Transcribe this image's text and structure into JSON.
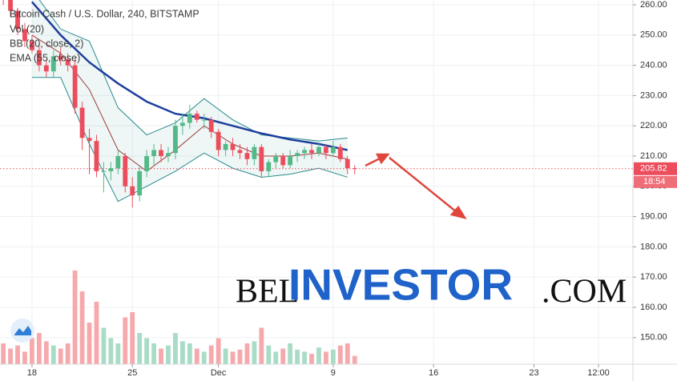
{
  "chart_data": {
    "type": "candlestick",
    "title": "Bitcoin Cash / U.S. Dollar, 240, BITSTAMP",
    "legend_items": [
      "Vol (20)",
      "BB (20, close, 2)",
      "EMA (55, close)"
    ],
    "x": [
      -2,
      -1.5,
      -1,
      -0.5,
      0,
      0.5,
      1,
      1.5,
      2,
      2.5,
      3,
      3.5,
      4,
      4.5,
      5,
      5.5,
      6,
      6.5,
      7,
      7.5,
      8,
      8.5,
      9,
      9.5,
      10,
      10.5,
      11,
      11.5,
      12,
      12.5,
      13,
      13.5,
      14,
      14.5,
      15,
      15.5,
      16,
      16.5,
      17,
      17.5,
      18,
      18.5,
      19,
      19.5,
      20,
      20.5,
      21,
      21.5,
      22,
      22.5
    ],
    "open": [
      265,
      262,
      258,
      252,
      248,
      245,
      240,
      238,
      243,
      242,
      240,
      226,
      216,
      215,
      205,
      205,
      206,
      210,
      200,
      197,
      205,
      210,
      212,
      210,
      211,
      220,
      221,
      224,
      222,
      222,
      218,
      212,
      214,
      212,
      211,
      209,
      213,
      205,
      208,
      210,
      207,
      210,
      211,
      212,
      211,
      213,
      211,
      213,
      209,
      206
    ],
    "high": [
      266,
      264,
      259,
      254,
      250,
      247,
      242,
      245,
      246,
      244,
      242,
      228,
      219,
      217,
      208,
      208,
      212,
      211,
      203,
      207,
      212,
      214,
      214,
      213,
      222,
      224,
      227,
      225,
      224,
      223,
      219,
      215,
      216,
      214,
      213,
      214,
      214,
      209,
      211,
      211,
      212,
      212,
      213,
      214,
      214,
      214,
      215,
      214,
      210,
      207
    ],
    "low": [
      260,
      256,
      250,
      246,
      244,
      238,
      236,
      236,
      240,
      238,
      224,
      212,
      204,
      203,
      198,
      202,
      204,
      198,
      193,
      195,
      203,
      207,
      208,
      208,
      209,
      217,
      219,
      221,
      219,
      216,
      210,
      210,
      210,
      209,
      207,
      207,
      203,
      203,
      206,
      206,
      206,
      208,
      209,
      209,
      210,
      209,
      210,
      208,
      204,
      204
    ],
    "close": [
      262,
      258,
      252,
      248,
      245,
      240,
      238,
      243,
      242,
      240,
      226,
      216,
      215,
      205,
      205,
      206,
      210,
      200,
      197,
      205,
      210,
      212,
      210,
      211,
      220,
      221,
      224,
      222,
      222,
      218,
      212,
      214,
      212,
      211,
      209,
      213,
      205,
      208,
      210,
      207,
      210,
      211,
      212,
      211,
      213,
      211,
      213,
      209,
      206,
      205.82
    ],
    "volume": [
      20,
      15,
      18,
      12,
      25,
      30,
      22,
      18,
      15,
      20,
      90,
      70,
      40,
      60,
      35,
      25,
      20,
      45,
      50,
      30,
      25,
      20,
      15,
      18,
      30,
      22,
      20,
      15,
      12,
      18,
      25,
      15,
      12,
      14,
      20,
      22,
      35,
      18,
      12,
      15,
      20,
      14,
      12,
      10,
      16,
      12,
      14,
      18,
      20,
      8
    ],
    "volume_ylim": [
      0,
      100
    ],
    "up_color": "#53b987",
    "down_color": "#eb4d5c",
    "volume_up_color": "#a8dcc6",
    "volume_down_color": "#f6a9ac",
    "indicators": {
      "x": [
        0,
        2,
        4,
        6,
        8,
        10,
        12,
        14,
        16,
        18,
        20,
        22
      ],
      "ema": [
        261,
        250,
        241,
        234,
        228,
        224,
        222.5,
        220,
        217.5,
        215.5,
        214,
        212
      ],
      "bb_upper": [
        265,
        252,
        248,
        226,
        217,
        221,
        229,
        222,
        217,
        216,
        215,
        216
      ],
      "bb_middle": [
        250,
        244,
        232,
        212,
        205,
        212,
        220,
        214,
        210,
        210,
        211,
        209
      ],
      "bb_lower": [
        236,
        236,
        214,
        195,
        200,
        205,
        211,
        206,
        203,
        204,
        206,
        203
      ],
      "ema_color": "#1e3f9e",
      "bb_color": "#2b8c8c",
      "bb_middle_color": "#a23b3b"
    },
    "last_price": 205.82,
    "countdown": "18:54",
    "xlim": [
      -2.23,
      41.9
    ],
    "ylim": [
      141.2,
      261.6
    ],
    "xticks": [
      {
        "value": 0,
        "label": "18"
      },
      {
        "value": 7,
        "label": "25"
      },
      {
        "value": 13,
        "label": "Dec"
      },
      {
        "value": 21,
        "label": "9"
      },
      {
        "value": 28,
        "label": "16"
      },
      {
        "value": 35,
        "label": "23"
      },
      {
        "value": 39.5,
        "label": "12:00"
      }
    ],
    "yticks": [
      {
        "value": 150,
        "label": "150.00"
      },
      {
        "value": 160,
        "label": "160.00"
      },
      {
        "value": 170,
        "label": "170.00"
      },
      {
        "value": 180,
        "label": "180.00"
      },
      {
        "value": 190,
        "label": "190.00"
      },
      {
        "value": 200,
        "label": "200.00"
      },
      {
        "value": 210,
        "label": "210.00"
      },
      {
        "value": 220,
        "label": "220.00"
      },
      {
        "value": 230,
        "label": "230.00"
      },
      {
        "value": 240,
        "label": "240.00"
      },
      {
        "value": 250,
        "label": "250.00"
      },
      {
        "value": 260,
        "label": "260.00"
      }
    ],
    "grid": true,
    "watermark": {
      "part1": "BEL",
      "part2": "INVESTOR",
      "part3": ".COM"
    }
  }
}
